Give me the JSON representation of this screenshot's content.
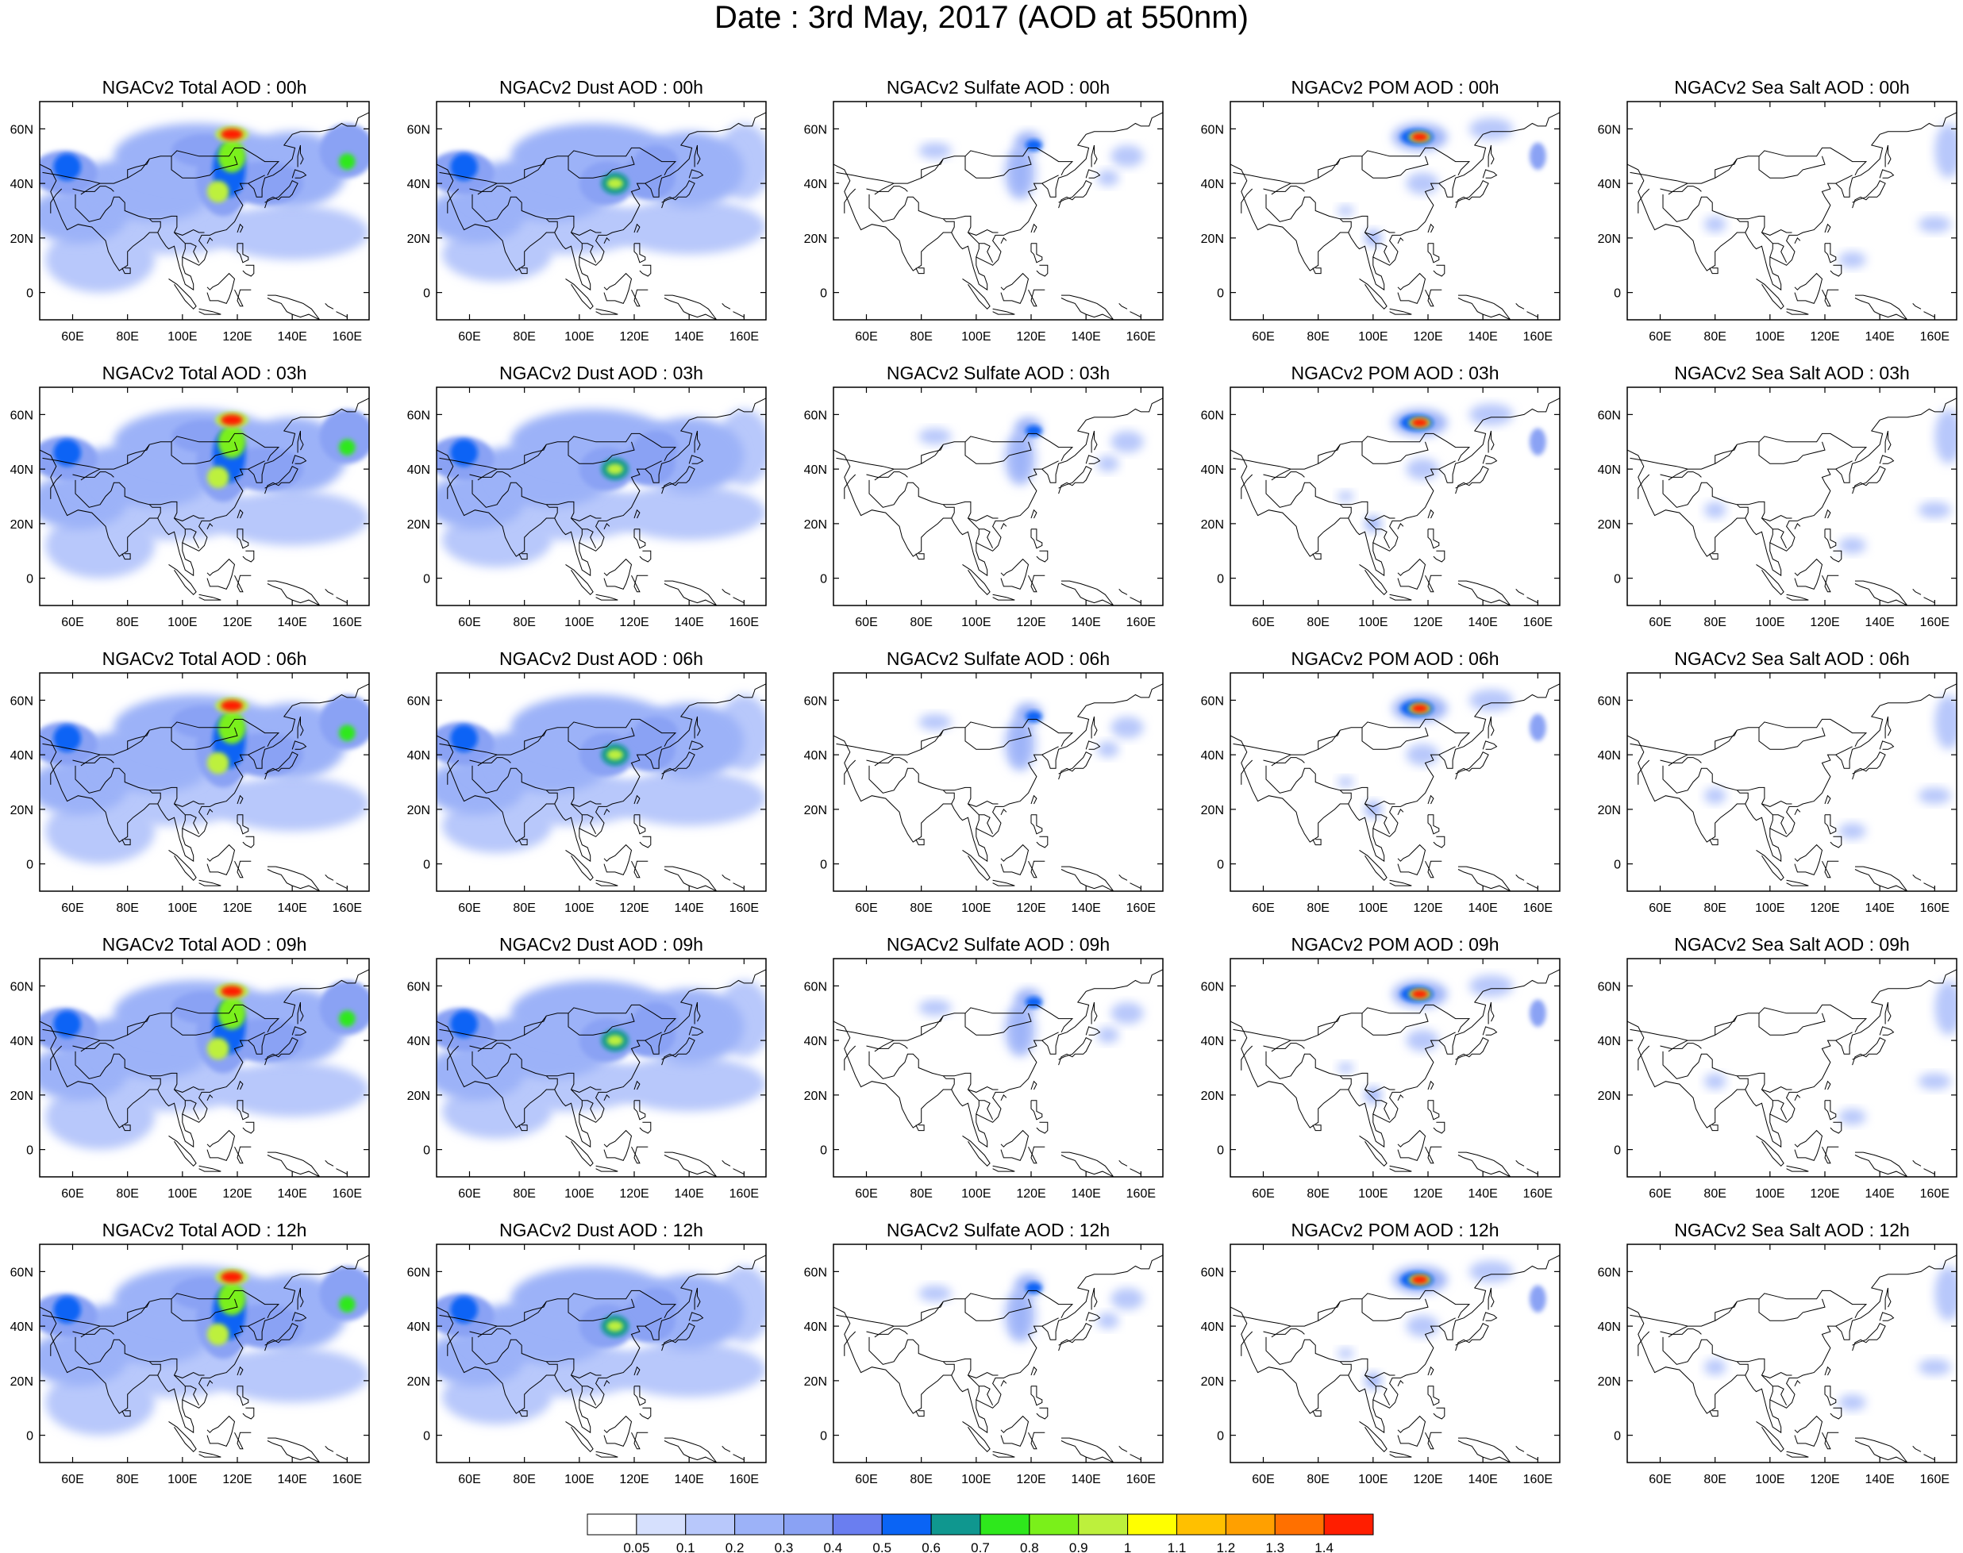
{
  "title": "Date : 3rd May, 2017 (AOD at 550nm)",
  "map_axes": {
    "lon_ticks": [
      "60E",
      "80E",
      "100E",
      "120E",
      "140E",
      "160E"
    ],
    "lat_ticks": [
      "60N",
      "40N",
      "20N",
      "0"
    ],
    "lon_values": [
      60,
      80,
      100,
      120,
      140,
      160
    ],
    "lat_values": [
      60,
      40,
      20,
      0
    ],
    "lon_range": [
      48,
      168
    ],
    "lat_range": [
      -10,
      70
    ]
  },
  "panels": [
    {
      "row": 0,
      "col": 0,
      "title": "NGACv2 Total AOD : 00h",
      "species": "total",
      "hour": "00h"
    },
    {
      "row": 0,
      "col": 1,
      "title": "NGACv2 Dust AOD : 00h",
      "species": "dust",
      "hour": "00h"
    },
    {
      "row": 0,
      "col": 2,
      "title": "NGACv2 Sulfate AOD : 00h",
      "species": "sulfate",
      "hour": "00h"
    },
    {
      "row": 0,
      "col": 3,
      "title": "NGACv2 POM AOD : 00h",
      "species": "pom",
      "hour": "00h"
    },
    {
      "row": 0,
      "col": 4,
      "title": "NGACv2 Sea Salt AOD : 00h",
      "species": "seasalt",
      "hour": "00h"
    },
    {
      "row": 1,
      "col": 0,
      "title": "NGACv2 Total AOD : 03h",
      "species": "total",
      "hour": "03h"
    },
    {
      "row": 1,
      "col": 1,
      "title": "NGACv2 Dust AOD : 03h",
      "species": "dust",
      "hour": "03h"
    },
    {
      "row": 1,
      "col": 2,
      "title": "NGACv2 Sulfate AOD : 03h",
      "species": "sulfate",
      "hour": "03h"
    },
    {
      "row": 1,
      "col": 3,
      "title": "NGACv2 POM AOD : 03h",
      "species": "pom",
      "hour": "03h"
    },
    {
      "row": 1,
      "col": 4,
      "title": "NGACv2 Sea Salt AOD : 03h",
      "species": "seasalt",
      "hour": "03h"
    },
    {
      "row": 2,
      "col": 0,
      "title": "NGACv2 Total AOD : 06h",
      "species": "total",
      "hour": "06h"
    },
    {
      "row": 2,
      "col": 1,
      "title": "NGACv2 Dust AOD : 06h",
      "species": "dust",
      "hour": "06h"
    },
    {
      "row": 2,
      "col": 2,
      "title": "NGACv2 Sulfate AOD : 06h",
      "species": "sulfate",
      "hour": "06h"
    },
    {
      "row": 2,
      "col": 3,
      "title": "NGACv2 POM AOD : 06h",
      "species": "pom",
      "hour": "06h"
    },
    {
      "row": 2,
      "col": 4,
      "title": "NGACv2 Sea Salt AOD : 06h",
      "species": "seasalt",
      "hour": "06h"
    },
    {
      "row": 3,
      "col": 0,
      "title": "NGACv2 Total AOD : 09h",
      "species": "total",
      "hour": "09h"
    },
    {
      "row": 3,
      "col": 1,
      "title": "NGACv2 Dust AOD : 09h",
      "species": "dust",
      "hour": "09h"
    },
    {
      "row": 3,
      "col": 2,
      "title": "NGACv2 Sulfate AOD : 09h",
      "species": "sulfate",
      "hour": "09h"
    },
    {
      "row": 3,
      "col": 3,
      "title": "NGACv2 POM AOD : 09h",
      "species": "pom",
      "hour": "09h"
    },
    {
      "row": 3,
      "col": 4,
      "title": "NGACv2 Sea Salt  AOD : 09h",
      "species": "seasalt",
      "hour": "09h"
    },
    {
      "row": 4,
      "col": 0,
      "title": "NGACv2 Total AOD  : 12h",
      "species": "total",
      "hour": "12h"
    },
    {
      "row": 4,
      "col": 1,
      "title": "NGACv2 Dust AOD : 12h",
      "species": "dust",
      "hour": "12h"
    },
    {
      "row": 4,
      "col": 2,
      "title": "NGACv2 Sulfate AOD : 12h",
      "species": "sulfate",
      "hour": "12h"
    },
    {
      "row": 4,
      "col": 3,
      "title": "NGACv2 POM  AOD : 12h",
      "species": "pom",
      "hour": "12h"
    },
    {
      "row": 4,
      "col": 4,
      "title": "NGACv2 Sea Salt  AOD : 12h",
      "species": "seasalt",
      "hour": "12h"
    }
  ],
  "colorbar": {
    "labels": [
      "0.05",
      "0.1",
      "0.2",
      "0.3",
      "0.4",
      "0.5",
      "0.6",
      "0.7",
      "0.8",
      "0.9",
      "1",
      "1.1",
      "1.2",
      "1.3",
      "1.4"
    ],
    "colors": [
      "#ffffff",
      "#d6e0fd",
      "#b8c8fb",
      "#9cb2f8",
      "#8aa2f4",
      "#6a7ef0",
      "#0a64f5",
      "#0f978f",
      "#2ee81c",
      "#7af01a",
      "#bdf03c",
      "#ffff00",
      "#ffc000",
      "#ffa000",
      "#ff7000",
      "#ff1e00"
    ]
  },
  "colors": {
    "map_line": "#000000",
    "frame": "#000000"
  }
}
